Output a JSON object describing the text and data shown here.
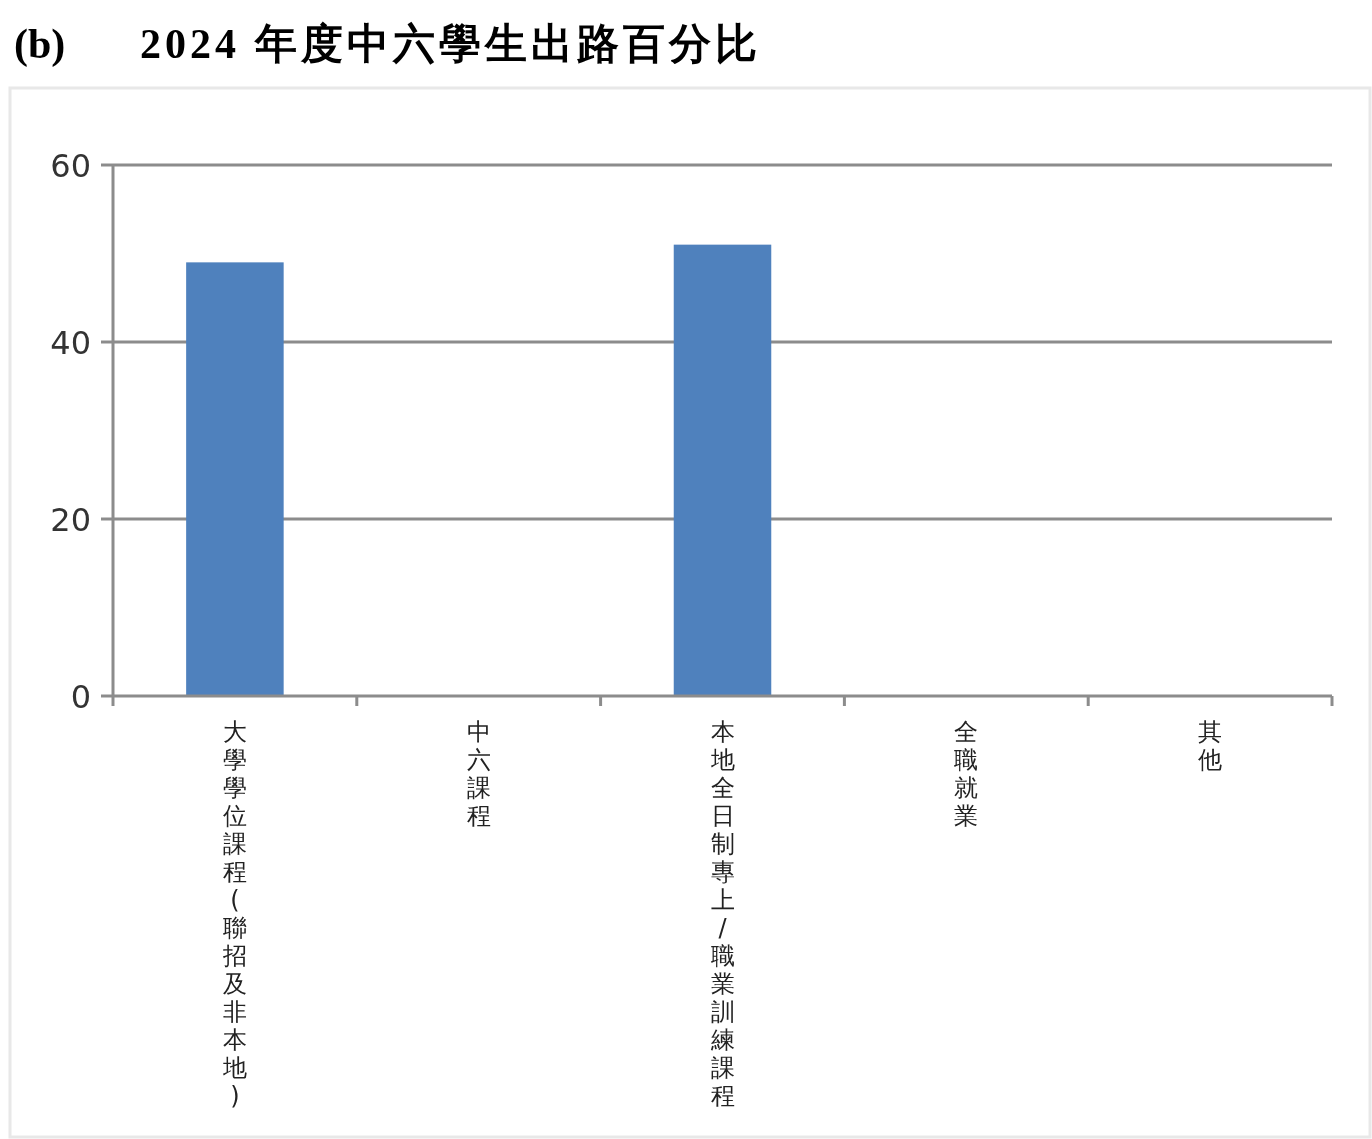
{
  "chart_data": {
    "type": "bar",
    "title": "2024 年度中六學生出路百分比",
    "annotations": [
      "(b)"
    ],
    "categories": [
      "大學學位課程(聯招及非本地)",
      "中六課程",
      "本地全日制專上/職業訓練課程",
      "全職就業",
      "其他"
    ],
    "values": [
      49,
      0,
      51,
      0,
      0
    ],
    "color": "#4f81bd",
    "ylim": [
      0,
      60
    ],
    "yticks": [
      0,
      20,
      40,
      60
    ],
    "grid": "y"
  }
}
